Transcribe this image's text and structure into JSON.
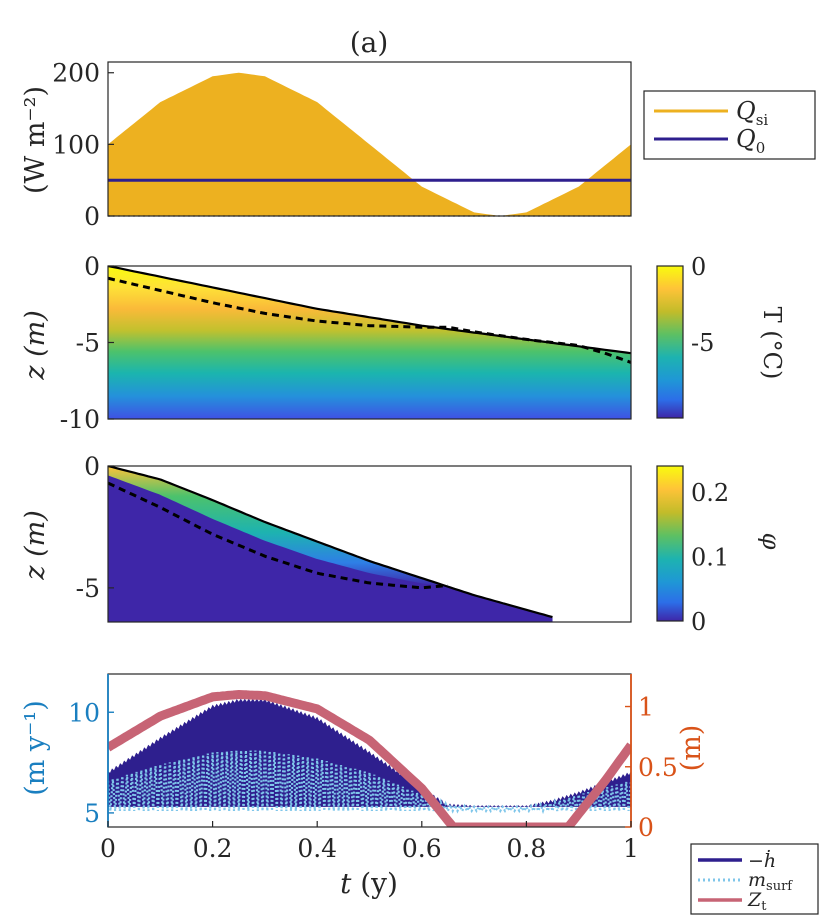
{
  "figure": {
    "title": "(a)",
    "xlabel": "t (y)",
    "xlim": [
      0,
      1
    ],
    "xticks": [
      "0",
      "0.2",
      "0.4",
      "0.6",
      "0.8",
      "1"
    ]
  },
  "colors": {
    "qsi": "#EDB120",
    "q0": "#2E1F8E",
    "hdot": "#2E1F8E",
    "msurf": "#7FC6EA",
    "zt": "#C76475",
    "left_axis": "#1A7FC0",
    "right_axis": "#D95319",
    "text": "#262626"
  },
  "chart_data": [
    {
      "type": "area",
      "ylabel": "(W m⁻²)",
      "ylim": [
        0,
        215
      ],
      "yticks": [
        "0",
        "100",
        "200"
      ],
      "legend": [
        "Q_si",
        "Q_0"
      ],
      "legend_placement": "outside-right",
      "series": [
        {
          "name": "Q_si",
          "label_main": "Q",
          "label_sub": "si",
          "kind": "filled-sinusoid",
          "x": [
            0,
            0.1,
            0.2,
            0.25,
            0.3,
            0.4,
            0.5,
            0.6,
            0.7,
            0.75,
            0.8,
            0.9,
            1.0
          ],
          "values": [
            100,
            159,
            195,
            200,
            195,
            159,
            100,
            41,
            5,
            0,
            5,
            41,
            100
          ]
        },
        {
          "name": "Q_0",
          "label_main": "Q",
          "label_sub": "0",
          "kind": "line",
          "x": [
            0,
            1
          ],
          "values": [
            50,
            50
          ]
        }
      ]
    },
    {
      "type": "heatmap",
      "ylabel": "z (m)",
      "ylim": [
        -10,
        0
      ],
      "yticks": [
        "0",
        "-5",
        "-10"
      ],
      "colorbar": {
        "label": "T (°C)",
        "ticks": [
          "0",
          "-5"
        ],
        "range": [
          -10,
          0
        ]
      },
      "surface_line": {
        "x": [
          0,
          0.2,
          0.4,
          0.6,
          0.8,
          1.0
        ],
        "values": [
          0,
          -1.4,
          -2.8,
          -3.9,
          -4.8,
          -5.7
        ]
      },
      "dashed_line": {
        "x": [
          0,
          0.1,
          0.2,
          0.3,
          0.4,
          0.5,
          0.6,
          0.65,
          0.7,
          0.8,
          0.9,
          0.95,
          1.0
        ],
        "values": [
          -0.8,
          -1.6,
          -2.4,
          -3.1,
          -3.6,
          -3.9,
          -4.0,
          -4.0,
          -4.3,
          -4.8,
          -5.2,
          -5.7,
          -6.3
        ]
      }
    },
    {
      "type": "heatmap",
      "ylabel": "z (m)",
      "ylim": [
        -6.4,
        0
      ],
      "yticks": [
        "0",
        "-5"
      ],
      "colorbar": {
        "label": "φ",
        "ticks": [
          "0.2",
          "0.1",
          "0"
        ],
        "range": [
          0,
          0.24
        ]
      },
      "surface_line": {
        "x": [
          0,
          0.1,
          0.2,
          0.3,
          0.4,
          0.5,
          0.6,
          0.7,
          0.8,
          0.85
        ],
        "values": [
          0,
          -0.55,
          -1.4,
          -2.3,
          -3.1,
          -3.9,
          -4.6,
          -5.3,
          -5.9,
          -6.2
        ]
      },
      "dashed_line": {
        "x": [
          0,
          0.1,
          0.2,
          0.3,
          0.4,
          0.5,
          0.6,
          0.65
        ],
        "values": [
          -0.7,
          -1.7,
          -2.8,
          -3.7,
          -4.4,
          -4.8,
          -5.0,
          -4.9
        ]
      }
    },
    {
      "type": "line",
      "ylabel_left": "(m y⁻¹)",
      "ylabel_right": "(m)",
      "ylim_left": [
        4.3,
        11.9
      ],
      "ylim_right": [
        0,
        1.27
      ],
      "yticks_left": [
        "5",
        "10"
      ],
      "yticks_right": [
        "0",
        "0.5",
        "1"
      ],
      "legend": [
        "−ḣ",
        "m_surf",
        "Z_t"
      ],
      "legend_placement": "outside-bottom-right",
      "series": [
        {
          "name": "−ḣ",
          "label": "−ḣ",
          "axis": "left",
          "kind": "filled-band",
          "x": [
            0,
            0.1,
            0.2,
            0.25,
            0.3,
            0.4,
            0.5,
            0.6,
            0.65,
            0.7,
            0.8,
            0.85,
            0.9,
            1.0
          ],
          "values": [
            7.0,
            8.7,
            10.3,
            10.6,
            10.6,
            9.7,
            8.0,
            6.2,
            5.4,
            5.3,
            5.3,
            5.6,
            6.0,
            7.0
          ],
          "lower": 5.3
        },
        {
          "name": "m_surf",
          "label_main": "m",
          "label_sub": "surf",
          "axis": "left",
          "kind": "dotted-band",
          "x": [
            0,
            0.1,
            0.2,
            0.25,
            0.3,
            0.4,
            0.5,
            0.6,
            0.65,
            0.7,
            0.8,
            0.85,
            0.9,
            1.0
          ],
          "values": [
            6.6,
            7.4,
            8.0,
            8.1,
            8.1,
            7.7,
            7.0,
            5.9,
            5.4,
            5.3,
            5.3,
            5.5,
            5.9,
            6.6
          ],
          "lower": 5.1
        },
        {
          "name": "Z_t",
          "label_main": "Z",
          "label_sub": "t",
          "axis": "right",
          "kind": "thick-line",
          "x": [
            0,
            0.1,
            0.2,
            0.25,
            0.3,
            0.4,
            0.5,
            0.6,
            0.66,
            0.88,
            0.95,
            1.0
          ],
          "values": [
            0.66,
            0.92,
            1.08,
            1.1,
            1.09,
            0.98,
            0.72,
            0.32,
            0.0,
            0.0,
            0.38,
            0.68
          ]
        }
      ]
    }
  ]
}
